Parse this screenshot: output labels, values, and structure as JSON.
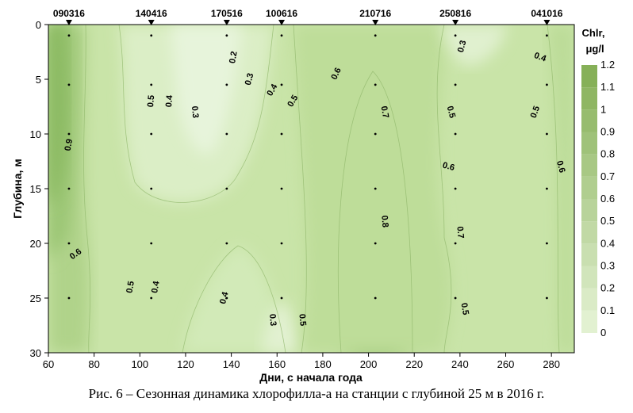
{
  "caption": "Рис. 6 – Сезонная динамика хлорофилла-а на станции с глубиной 25 м в 2016 г.",
  "chart_data": {
    "type": "heatmap",
    "xlabel": "Дни, с начала года",
    "ylabel": "Глубина, м",
    "xlim": [
      60,
      290
    ],
    "ylim": [
      30,
      0
    ],
    "x_ticks": [
      60,
      80,
      100,
      120,
      140,
      160,
      180,
      200,
      220,
      240,
      260,
      280
    ],
    "y_ticks": [
      0,
      5,
      10,
      15,
      20,
      25,
      30
    ],
    "stations": [
      {
        "label": "090316",
        "day": 69
      },
      {
        "label": "140416",
        "day": 105
      },
      {
        "label": "170516",
        "day": 138
      },
      {
        "label": "100616",
        "day": 162
      },
      {
        "label": "210716",
        "day": 203
      },
      {
        "label": "250816",
        "day": 238
      },
      {
        "label": "041016",
        "day": 278
      }
    ],
    "sample_depths": [
      1,
      5.5,
      10,
      15,
      20,
      25
    ],
    "colorbar": {
      "title_line1": "Chlr,",
      "title_line2": "μg/l",
      "levels": [
        0,
        0.1,
        0.2,
        0.3,
        0.4,
        0.5,
        0.6,
        0.7,
        0.8,
        0.9,
        1,
        1.1,
        1.2
      ],
      "tick_labels": [
        "0",
        "0.1",
        "0.2",
        "0.3",
        "0.4",
        "0.5",
        "0.6",
        "0.7",
        "0.8",
        "0.9",
        "1",
        "1.1",
        "1.2"
      ],
      "color_low": "#e6f4d7",
      "color_high": "#82ad52"
    },
    "contour_labels": [
      {
        "text": "0.9",
        "day": 69,
        "depth": 11,
        "angle": -80
      },
      {
        "text": "0.6",
        "day": 72,
        "depth": 21,
        "angle": -35
      },
      {
        "text": "0.5",
        "day": 96,
        "depth": 24,
        "angle": -80
      },
      {
        "text": "0.4",
        "day": 107,
        "depth": 24,
        "angle": -80
      },
      {
        "text": "0.5",
        "day": 105,
        "depth": 7,
        "angle": -85
      },
      {
        "text": "0.4",
        "day": 113,
        "depth": 7,
        "angle": -85
      },
      {
        "text": "0.3",
        "day": 124,
        "depth": 8,
        "angle": 85
      },
      {
        "text": "0.2",
        "day": 141,
        "depth": 3,
        "angle": -80
      },
      {
        "text": "0.3",
        "day": 148,
        "depth": 5,
        "angle": -75
      },
      {
        "text": "0.4",
        "day": 158,
        "depth": 6,
        "angle": -60
      },
      {
        "text": "0.5",
        "day": 167,
        "depth": 7,
        "angle": -60
      },
      {
        "text": "0.6",
        "day": 186,
        "depth": 4.5,
        "angle": -65
      },
      {
        "text": "0.7",
        "day": 207,
        "depth": 8,
        "angle": 80
      },
      {
        "text": "0.8",
        "day": 207,
        "depth": 18,
        "angle": 85
      },
      {
        "text": "0.5",
        "day": 236,
        "depth": 8,
        "angle": 75
      },
      {
        "text": "0.3",
        "day": 241,
        "depth": 2,
        "angle": -75
      },
      {
        "text": "0.4",
        "day": 275,
        "depth": 3,
        "angle": 20
      },
      {
        "text": "0.5",
        "day": 273,
        "depth": 8,
        "angle": -70
      },
      {
        "text": "0.6",
        "day": 284,
        "depth": 13,
        "angle": 75
      },
      {
        "text": "0.6",
        "day": 235,
        "depth": 13,
        "angle": 15
      },
      {
        "text": "0.7",
        "day": 240,
        "depth": 19,
        "angle": 85
      },
      {
        "text": "0.5",
        "day": 242,
        "depth": 26,
        "angle": 80
      },
      {
        "text": "0.4",
        "day": 137,
        "depth": 25,
        "angle": -75
      },
      {
        "text": "0.3",
        "day": 158,
        "depth": 27,
        "angle": 85
      },
      {
        "text": "0.5",
        "day": 171,
        "depth": 27,
        "angle": 85
      }
    ]
  }
}
